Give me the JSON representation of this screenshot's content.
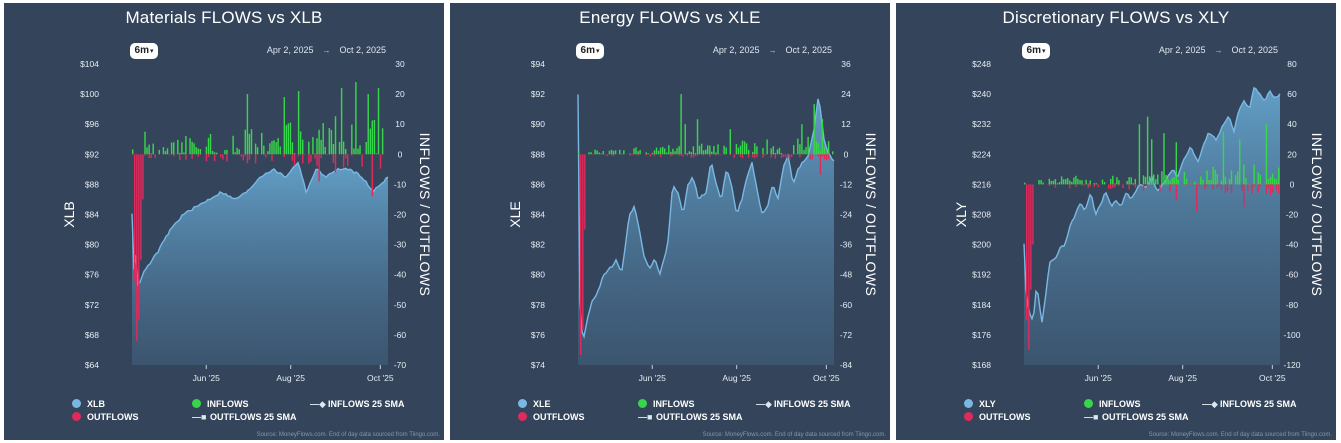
{
  "range_button": "6m",
  "colors": {
    "panel_bg": "#34455b",
    "price_line": "#7ab8e4",
    "inflows": "#38d64a",
    "outflows": "#e02a5c",
    "text": "#ffffff"
  },
  "chart_data": [
    {
      "type": "area+bar",
      "title": "Materials FLOWS vs XLB",
      "date_start": "Apr 2, 2025",
      "date_end": "Oct 2, 2025",
      "ylabel_left": "XLB",
      "ylabel_right": "INFLOWS / OUTFLOWS",
      "left_ticks": [
        "$104",
        "$100",
        "$96",
        "$92",
        "$88",
        "$84",
        "$80",
        "$76",
        "$72",
        "$68",
        "$64"
      ],
      "right_ticks": [
        "30",
        "20",
        "10",
        "0",
        "-10",
        "-20",
        "-30",
        "-40",
        "-50",
        "-60",
        "-70"
      ],
      "ylim_left": [
        64,
        104
      ],
      "ylim_right": [
        -70,
        30
      ],
      "x_ticks": [
        {
          "label": "Jun '25",
          "pos": 0.29
        },
        {
          "label": "Aug '25",
          "pos": 0.62
        },
        {
          "label": "Oct '25",
          "pos": 0.97
        }
      ],
      "price_anchors": [
        [
          0,
          84
        ],
        [
          0.005,
          76
        ],
        [
          0.015,
          79
        ],
        [
          0.025,
          74
        ],
        [
          0.04,
          76
        ],
        [
          0.06,
          77
        ],
        [
          0.1,
          79
        ],
        [
          0.15,
          82
        ],
        [
          0.2,
          84
        ],
        [
          0.25,
          85
        ],
        [
          0.3,
          86
        ],
        [
          0.35,
          87
        ],
        [
          0.4,
          86
        ],
        [
          0.45,
          87
        ],
        [
          0.5,
          89
        ],
        [
          0.55,
          90
        ],
        [
          0.6,
          89
        ],
        [
          0.65,
          91
        ],
        [
          0.68,
          87
        ],
        [
          0.72,
          90
        ],
        [
          0.76,
          89
        ],
        [
          0.8,
          90
        ],
        [
          0.85,
          90
        ],
        [
          0.9,
          89
        ],
        [
          0.94,
          87
        ],
        [
          0.97,
          88
        ],
        [
          1,
          89
        ]
      ],
      "flow_spikes": [
        [
          0.005,
          -20
        ],
        [
          0.012,
          -42
        ],
        [
          0.018,
          -62
        ],
        [
          0.025,
          -55
        ],
        [
          0.032,
          -35
        ],
        [
          0.04,
          -15
        ]
      ],
      "flow_profile": {
        "in_max": 12,
        "out_max": 4,
        "seed": 11,
        "spikes_in": [
          [
            0.45,
            20
          ],
          [
            0.6,
            19
          ],
          [
            0.65,
            21
          ],
          [
            0.82,
            22
          ],
          [
            0.88,
            24
          ],
          [
            0.93,
            20
          ],
          [
            0.97,
            22
          ],
          [
            0.05,
            15
          ]
        ],
        "spikes_out": [
          [
            0.73,
            -9
          ],
          [
            0.8,
            -6
          ],
          [
            0.94,
            -14
          ]
        ]
      },
      "legend": [
        "XLB",
        "INFLOWS",
        "INFLOWS 25 SMA",
        "OUTFLOWS",
        "OUTFLOWS 25 SMA"
      ],
      "source": "Source: MoneyFlows.com. End of day data sourced from Tiingo.com."
    },
    {
      "type": "area+bar",
      "title": "Energy FLOWS vs XLE",
      "date_start": "Apr 2, 2025",
      "date_end": "Oct 2, 2025",
      "ylabel_left": "XLE",
      "ylabel_right": "INFLOWS / OUTFLOWS",
      "left_ticks": [
        "$94",
        "$92",
        "$90",
        "$88",
        "$86",
        "$84",
        "$82",
        "$80",
        "$78",
        "$76",
        "$74"
      ],
      "right_ticks": [
        "36",
        "24",
        "12",
        "0",
        "-12",
        "-24",
        "-36",
        "-48",
        "-60",
        "-72",
        "-84"
      ],
      "ylim_left": [
        74,
        94
      ],
      "ylim_right": [
        -84,
        36
      ],
      "x_ticks": [
        {
          "label": "Jun '25",
          "pos": 0.29
        },
        {
          "label": "Aug '25",
          "pos": 0.62
        },
        {
          "label": "Oct '25",
          "pos": 0.97
        }
      ],
      "price_anchors": [
        [
          0,
          92
        ],
        [
          0.005,
          80
        ],
        [
          0.01,
          77
        ],
        [
          0.02,
          75.5
        ],
        [
          0.03,
          76.5
        ],
        [
          0.05,
          78
        ],
        [
          0.08,
          79
        ],
        [
          0.1,
          80
        ],
        [
          0.13,
          80.5
        ],
        [
          0.15,
          81
        ],
        [
          0.17,
          80
        ],
        [
          0.2,
          84
        ],
        [
          0.22,
          84.5
        ],
        [
          0.24,
          83
        ],
        [
          0.26,
          81
        ],
        [
          0.28,
          80.5
        ],
        [
          0.3,
          81
        ],
        [
          0.32,
          80
        ],
        [
          0.35,
          82
        ],
        [
          0.37,
          86
        ],
        [
          0.39,
          85.5
        ],
        [
          0.41,
          84
        ],
        [
          0.43,
          86
        ],
        [
          0.45,
          86.5
        ],
        [
          0.47,
          85
        ],
        [
          0.5,
          85.5
        ],
        [
          0.52,
          87.5
        ],
        [
          0.54,
          86
        ],
        [
          0.56,
          85
        ],
        [
          0.58,
          87
        ],
        [
          0.6,
          86
        ],
        [
          0.62,
          84
        ],
        [
          0.64,
          85
        ],
        [
          0.66,
          86.5
        ],
        [
          0.68,
          87.5
        ],
        [
          0.7,
          85.5
        ],
        [
          0.72,
          84
        ],
        [
          0.74,
          84.5
        ],
        [
          0.76,
          86
        ],
        [
          0.78,
          85
        ],
        [
          0.8,
          87
        ],
        [
          0.82,
          88
        ],
        [
          0.84,
          86
        ],
        [
          0.86,
          87
        ],
        [
          0.88,
          87.5
        ],
        [
          0.9,
          88
        ],
        [
          0.92,
          89.5
        ],
        [
          0.94,
          92
        ],
        [
          0.96,
          89
        ],
        [
          0.98,
          88
        ],
        [
          1,
          87.5
        ]
      ],
      "flow_spikes": [
        [
          0.004,
          -60
        ],
        [
          0.01,
          -80
        ],
        [
          0.016,
          -70
        ],
        [
          0.022,
          -55
        ],
        [
          0.028,
          -30
        ]
      ],
      "flow_profile": {
        "in_max": 6,
        "out_max": 2,
        "seed": 23,
        "spikes_in": [
          [
            0.4,
            24
          ],
          [
            0.42,
            12
          ],
          [
            0.47,
            14
          ],
          [
            0.6,
            10
          ],
          [
            0.88,
            12
          ],
          [
            0.93,
            20
          ],
          [
            0.96,
            14
          ]
        ],
        "spikes_out": [
          [
            0.95,
            -8
          ]
        ]
      },
      "legend": [
        "XLE",
        "INFLOWS",
        "INFLOWS 25 SMA",
        "OUTFLOWS",
        "OUTFLOWS 25 SMA"
      ],
      "source": "Source: MoneyFlows.com. End of day data sourced from Tiingo.com."
    },
    {
      "type": "area+bar",
      "title": "Discretionary FLOWS vs XLY",
      "date_start": "Apr 2, 2025",
      "date_end": "Oct 2, 2025",
      "ylabel_left": "XLY",
      "ylabel_right": "INFLOWS / OUTFLOWS",
      "left_ticks": [
        "$248",
        "$240",
        "$232",
        "$224",
        "$216",
        "$208",
        "$200",
        "$192",
        "$184",
        "$176",
        "$168"
      ],
      "right_ticks": [
        "80",
        "60",
        "40",
        "20",
        "0",
        "-20",
        "-40",
        "-60",
        "-80",
        "-100",
        "-120"
      ],
      "ylim_left": [
        168,
        248
      ],
      "ylim_right": [
        -120,
        80
      ],
      "x_ticks": [
        {
          "label": "Jun '25",
          "pos": 0.29
        },
        {
          "label": "Aug '25",
          "pos": 0.62
        },
        {
          "label": "Oct '25",
          "pos": 0.97
        }
      ],
      "price_anchors": [
        [
          0,
          200
        ],
        [
          0.005,
          190
        ],
        [
          0.01,
          186
        ],
        [
          0.02,
          182
        ],
        [
          0.03,
          180
        ],
        [
          0.04,
          182
        ],
        [
          0.05,
          190
        ],
        [
          0.06,
          184
        ],
        [
          0.07,
          179
        ],
        [
          0.08,
          184
        ],
        [
          0.1,
          195
        ],
        [
          0.12,
          196
        ],
        [
          0.14,
          199
        ],
        [
          0.16,
          200
        ],
        [
          0.18,
          205
        ],
        [
          0.2,
          208
        ],
        [
          0.22,
          211
        ],
        [
          0.24,
          209
        ],
        [
          0.26,
          214
        ],
        [
          0.28,
          208
        ],
        [
          0.3,
          211
        ],
        [
          0.32,
          214
        ],
        [
          0.34,
          210
        ],
        [
          0.36,
          212
        ],
        [
          0.38,
          210
        ],
        [
          0.4,
          214
        ],
        [
          0.42,
          212
        ],
        [
          0.45,
          216
        ],
        [
          0.48,
          215
        ],
        [
          0.5,
          218
        ],
        [
          0.52,
          214
        ],
        [
          0.55,
          217
        ],
        [
          0.58,
          220
        ],
        [
          0.6,
          218
        ],
        [
          0.62,
          222
        ],
        [
          0.65,
          226
        ],
        [
          0.68,
          222
        ],
        [
          0.7,
          226
        ],
        [
          0.72,
          230
        ],
        [
          0.75,
          228
        ],
        [
          0.78,
          232
        ],
        [
          0.8,
          234
        ],
        [
          0.82,
          230
        ],
        [
          0.84,
          236
        ],
        [
          0.86,
          238
        ],
        [
          0.88,
          236
        ],
        [
          0.9,
          242
        ],
        [
          0.92,
          240
        ],
        [
          0.94,
          238
        ],
        [
          0.96,
          241
        ],
        [
          0.98,
          239
        ],
        [
          1,
          240
        ]
      ],
      "flow_spikes": [
        [
          0.004,
          -60
        ],
        [
          0.01,
          -90
        ],
        [
          0.016,
          -110
        ],
        [
          0.022,
          -100
        ],
        [
          0.028,
          -70
        ],
        [
          0.034,
          -40
        ]
      ],
      "flow_profile": {
        "in_max": 12,
        "out_max": 6,
        "seed": 37,
        "spikes_in": [
          [
            0.45,
            40
          ],
          [
            0.48,
            45
          ],
          [
            0.5,
            30
          ],
          [
            0.55,
            34
          ],
          [
            0.6,
            28
          ],
          [
            0.78,
            35
          ],
          [
            0.85,
            30
          ],
          [
            0.95,
            40
          ]
        ],
        "spikes_out": [
          [
            0.6,
            -10
          ],
          [
            0.68,
            -18
          ],
          [
            0.86,
            -15
          ]
        ]
      },
      "legend": [
        "XLY",
        "INFLOWS",
        "INFLOWS 25 SMA",
        "OUTFLOWS",
        "OUTFLOWS 25 SMA"
      ],
      "source": "Source: MoneyFlows.com. End of day data sourced from Tiingo.com."
    }
  ]
}
